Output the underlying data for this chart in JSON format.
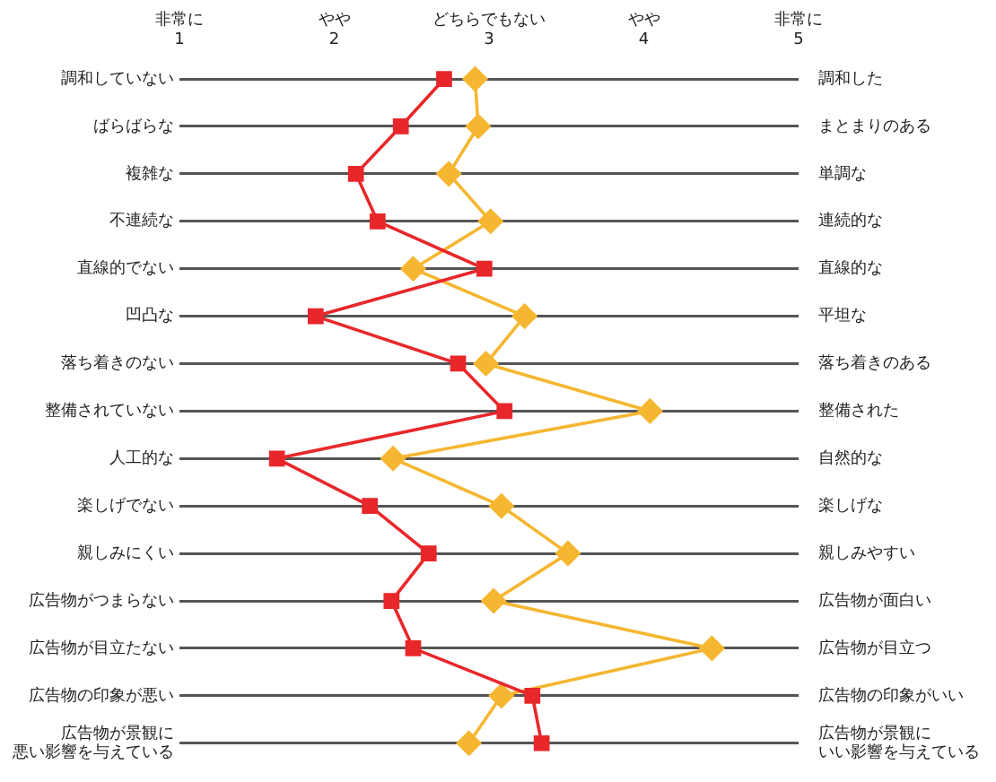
{
  "chart_data": {
    "type": "line",
    "orientation": "horizontal",
    "categories": [
      "調和していない",
      "ばらばらな",
      "複雑な",
      "不連続な",
      "直線的でない",
      "凹凸な",
      "落ち着きのない",
      "整備されていない",
      "人工的な",
      "楽しげでない",
      "親しみにくい",
      "広告物がつまらない",
      "広告物が目立たない",
      "広告物の印象が悪い",
      "広告物が景観に悪い影響を与えている"
    ],
    "y2_categories": [
      "調和した",
      "まとまりのある",
      "単調な",
      "連続的な",
      "直線的な",
      "平坦な",
      "落ち着きのある",
      "整備された",
      "自然的な",
      "楽しげな",
      "親しみやすい",
      "広告物が面白い",
      "広告物が目立つ",
      "広告物の印象がいい",
      "広告物が景観にいい影響を与えている"
    ],
    "xlim": [
      1,
      5
    ],
    "xticks": [
      1,
      2,
      3,
      4,
      5
    ],
    "annotations": [
      "非常に",
      "やや",
      "どちらでもない",
      "やや",
      "非常に"
    ],
    "grid": "y",
    "legend": false,
    "line_style": "solid",
    "series": [
      {
        "color": "#e8272b",
        "marker": "square",
        "values": [
          2.71,
          2.43,
          2.14,
          2.28,
          2.97,
          1.88,
          2.8,
          3.1,
          1.63,
          2.23,
          2.61,
          2.37,
          2.51,
          3.28,
          3.34
        ]
      },
      {
        "color": "#f5b731",
        "marker": "diamond",
        "values": [
          2.91,
          2.93,
          2.74,
          3.01,
          2.51,
          3.23,
          2.98,
          4.04,
          2.38,
          3.08,
          3.51,
          3.03,
          4.44,
          3.08,
          2.87
        ]
      }
    ]
  }
}
